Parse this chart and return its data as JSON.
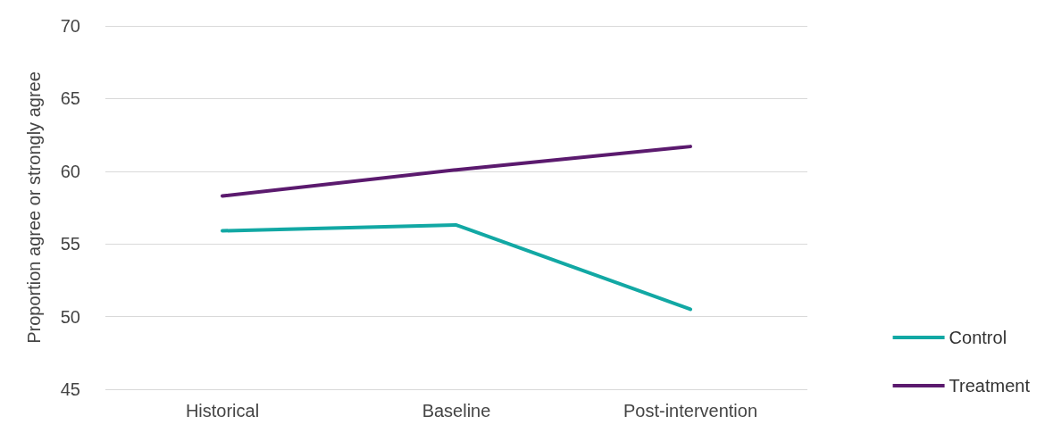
{
  "chart_data": {
    "type": "line",
    "ylabel": "Proportion agree or strongly agree",
    "categories": [
      "Historical",
      "Baseline",
      "Post-intervention"
    ],
    "series": [
      {
        "name": "Control",
        "color": "#12a8a4",
        "values": [
          55.9,
          56.3,
          50.5
        ]
      },
      {
        "name": "Treatment",
        "color": "#5b1a6e",
        "values": [
          58.3,
          60.1,
          61.7
        ]
      }
    ],
    "ylim": [
      45,
      70
    ],
    "yticks": [
      45,
      50,
      55,
      60,
      65,
      70
    ],
    "grid": "y",
    "legend": "right",
    "marker": "none",
    "line_style": "solid"
  }
}
